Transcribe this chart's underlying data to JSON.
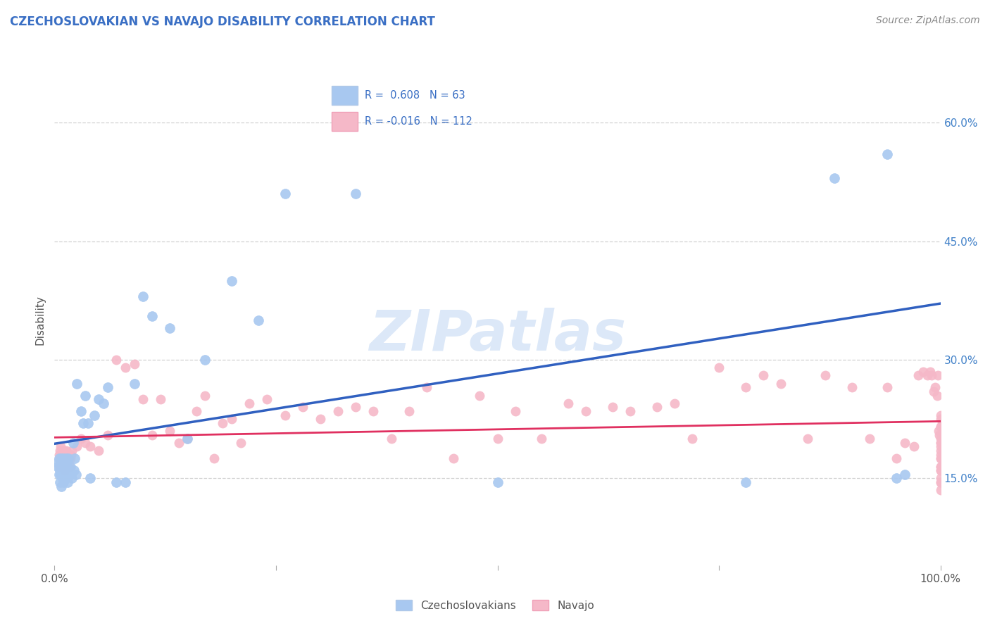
{
  "title": "CZECHOSLOVAKIAN VS NAVAJO DISABILITY CORRELATION CHART",
  "source": "Source: ZipAtlas.com",
  "ylabel": "Disability",
  "xlim": [
    0.0,
    1.0
  ],
  "ylim": [
    0.04,
    0.66
  ],
  "r_czech": 0.608,
  "n_czech": 63,
  "r_navajo": -0.016,
  "n_navajo": 112,
  "czech_color": "#a8c8f0",
  "navajo_color": "#f5b8c8",
  "czech_line_color": "#3060c0",
  "navajo_line_color": "#e03060",
  "watermark": "ZIPatlas",
  "watermark_color": "#dce8f8",
  "legend_label_czech": "Czechoslovakians",
  "legend_label_navajo": "Navajo",
  "title_color": "#3a6fc4",
  "source_color": "#888888",
  "tick_color": "#4080c8",
  "axis_label_color": "#555555",
  "grid_color": "#cccccc",
  "background_color": "#ffffff",
  "czech_x": [
    0.003,
    0.004,
    0.005,
    0.005,
    0.006,
    0.006,
    0.007,
    0.007,
    0.008,
    0.008,
    0.009,
    0.009,
    0.01,
    0.01,
    0.01,
    0.011,
    0.011,
    0.012,
    0.012,
    0.013,
    0.013,
    0.014,
    0.014,
    0.015,
    0.015,
    0.016,
    0.016,
    0.017,
    0.018,
    0.019,
    0.02,
    0.021,
    0.022,
    0.023,
    0.024,
    0.025,
    0.03,
    0.032,
    0.035,
    0.038,
    0.04,
    0.045,
    0.05,
    0.055,
    0.06,
    0.07,
    0.08,
    0.09,
    0.1,
    0.11,
    0.13,
    0.15,
    0.17,
    0.2,
    0.23,
    0.26,
    0.34,
    0.5,
    0.78,
    0.88,
    0.94,
    0.95,
    0.96
  ],
  "czech_y": [
    0.17,
    0.165,
    0.155,
    0.175,
    0.145,
    0.16,
    0.155,
    0.165,
    0.14,
    0.175,
    0.15,
    0.165,
    0.145,
    0.16,
    0.175,
    0.155,
    0.17,
    0.15,
    0.165,
    0.16,
    0.175,
    0.155,
    0.17,
    0.145,
    0.165,
    0.155,
    0.175,
    0.16,
    0.165,
    0.155,
    0.15,
    0.195,
    0.16,
    0.175,
    0.155,
    0.27,
    0.235,
    0.22,
    0.255,
    0.22,
    0.15,
    0.23,
    0.25,
    0.245,
    0.265,
    0.145,
    0.145,
    0.27,
    0.38,
    0.355,
    0.34,
    0.2,
    0.3,
    0.4,
    0.35,
    0.51,
    0.51,
    0.145,
    0.145,
    0.53,
    0.56,
    0.15,
    0.155
  ],
  "navajo_x": [
    0.005,
    0.005,
    0.006,
    0.006,
    0.007,
    0.007,
    0.008,
    0.008,
    0.009,
    0.009,
    0.01,
    0.01,
    0.011,
    0.011,
    0.012,
    0.012,
    0.013,
    0.013,
    0.014,
    0.015,
    0.016,
    0.017,
    0.018,
    0.019,
    0.02,
    0.025,
    0.03,
    0.035,
    0.04,
    0.05,
    0.06,
    0.07,
    0.08,
    0.09,
    0.1,
    0.11,
    0.12,
    0.13,
    0.14,
    0.15,
    0.16,
    0.17,
    0.18,
    0.19,
    0.2,
    0.21,
    0.22,
    0.24,
    0.26,
    0.28,
    0.3,
    0.32,
    0.34,
    0.36,
    0.38,
    0.4,
    0.42,
    0.45,
    0.48,
    0.5,
    0.52,
    0.55,
    0.58,
    0.6,
    0.63,
    0.65,
    0.68,
    0.7,
    0.72,
    0.75,
    0.78,
    0.8,
    0.82,
    0.85,
    0.87,
    0.9,
    0.92,
    0.94,
    0.95,
    0.96,
    0.97,
    0.975,
    0.98,
    0.985,
    0.988,
    0.99,
    0.992,
    0.994,
    0.996,
    0.997,
    0.998,
    0.999,
    1.0,
    1.0,
    1.0,
    1.0,
    1.0,
    1.0,
    1.0,
    1.0,
    1.0,
    1.0,
    1.0,
    1.0,
    1.0,
    1.0,
    1.0,
    1.0,
    1.0,
    1.0,
    1.0,
    1.0
  ],
  "navajo_y": [
    0.18,
    0.165,
    0.175,
    0.185,
    0.17,
    0.19,
    0.165,
    0.18,
    0.17,
    0.185,
    0.175,
    0.165,
    0.17,
    0.185,
    0.16,
    0.175,
    0.17,
    0.185,
    0.175,
    0.17,
    0.175,
    0.165,
    0.175,
    0.18,
    0.185,
    0.19,
    0.2,
    0.195,
    0.19,
    0.185,
    0.205,
    0.3,
    0.29,
    0.295,
    0.25,
    0.205,
    0.25,
    0.21,
    0.195,
    0.2,
    0.235,
    0.255,
    0.175,
    0.22,
    0.225,
    0.195,
    0.245,
    0.25,
    0.23,
    0.24,
    0.225,
    0.235,
    0.24,
    0.235,
    0.2,
    0.235,
    0.265,
    0.175,
    0.255,
    0.2,
    0.235,
    0.2,
    0.245,
    0.235,
    0.24,
    0.235,
    0.24,
    0.245,
    0.2,
    0.29,
    0.265,
    0.28,
    0.27,
    0.2,
    0.28,
    0.265,
    0.2,
    0.265,
    0.175,
    0.195,
    0.19,
    0.28,
    0.285,
    0.28,
    0.285,
    0.28,
    0.26,
    0.265,
    0.255,
    0.28,
    0.21,
    0.205,
    0.19,
    0.195,
    0.145,
    0.165,
    0.225,
    0.135,
    0.15,
    0.16,
    0.175,
    0.215,
    0.185,
    0.145,
    0.16,
    0.175,
    0.215,
    0.195,
    0.23,
    0.2,
    0.165,
    0.18
  ]
}
